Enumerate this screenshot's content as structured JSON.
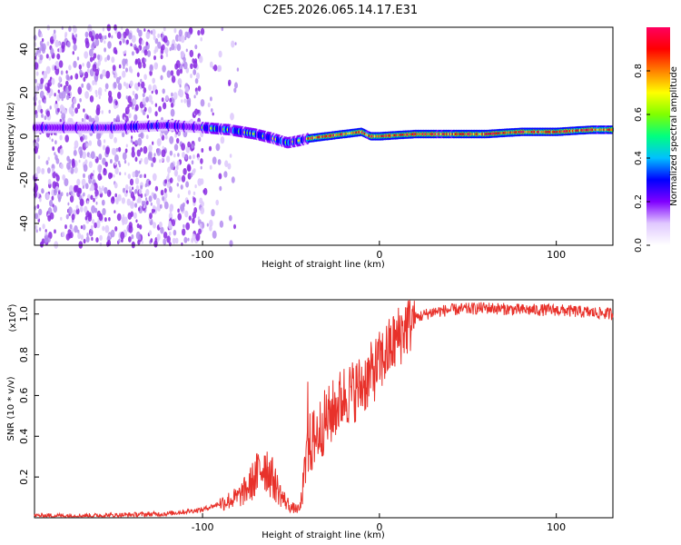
{
  "title": "C2E5.2026.065.14.17.E31",
  "chart_data": [
    {
      "type": "heatmap",
      "xlabel": "Height of straight line (km)",
      "ylabel": "Frequency (Hz)",
      "xlim": [
        -195,
        132
      ],
      "ylim": [
        -50,
        50
      ],
      "xticks": [
        -100,
        0,
        100
      ],
      "xtick_labels": [
        "-100",
        "0",
        "100"
      ],
      "yticks": [
        -40,
        -20,
        0,
        20,
        40
      ],
      "ytick_labels": [
        "-40",
        "-20",
        "0",
        "20",
        "40"
      ],
      "ridge": {
        "x": [
          -195,
          -150,
          -120,
          -100,
          -85,
          -70,
          -60,
          -52,
          -45,
          -40,
          -30,
          -20,
          -10,
          -5,
          0,
          20,
          40,
          60,
          80,
          100,
          120,
          132
        ],
        "y": [
          4,
          4,
          5,
          4,
          3,
          1,
          -1,
          -3,
          -2,
          -1,
          0,
          1,
          2,
          0,
          0,
          1,
          1,
          1,
          2,
          2,
          3,
          3
        ]
      },
      "noise_region_x": [
        -195,
        -100
      ],
      "colorbar": {
        "label": "Normalized spectral amplitude",
        "range": [
          0,
          1
        ],
        "ticks": [
          0.0,
          0.2,
          0.4,
          0.6,
          0.8
        ],
        "tick_labels": [
          "0.0",
          "0.2",
          "0.4",
          "0.6",
          "0.8"
        ],
        "colors": [
          "#ffffff",
          "#e0c8ff",
          "#8000ff",
          "#0000ff",
          "#00c0ff",
          "#00ff80",
          "#80ff00",
          "#ffff00",
          "#ff8000",
          "#ff0000",
          "#ff0060"
        ]
      }
    },
    {
      "type": "line",
      "xlabel": "Height of straight line (km)",
      "ylabel": "SNR (10 * v/v)",
      "y_multiplier": "(x10",
      "y_multiplier_exp": "4",
      "y_multiplier_close": ")",
      "xlim": [
        -195,
        132
      ],
      "ylim": [
        0,
        1.07
      ],
      "xticks": [
        -100,
        0,
        100
      ],
      "xtick_labels": [
        "-100",
        "0",
        "100"
      ],
      "yticks": [
        0.2,
        0.4,
        0.6,
        0.8,
        1.0
      ],
      "ytick_labels": [
        "0.2",
        "0.4",
        "0.6",
        "0.8",
        "1.0"
      ],
      "color": "#e8312a",
      "series": [
        {
          "name": "SNR",
          "x": [
            -195,
            -160,
            -120,
            -100,
            -90,
            -80,
            -75,
            -70,
            -65,
            -62,
            -58,
            -55,
            -50,
            -45,
            -42,
            -40,
            -36,
            -32,
            -28,
            -24,
            -20,
            -15,
            -10,
            -5,
            0,
            5,
            10,
            15,
            20,
            30,
            40,
            60,
            80,
            100,
            115,
            132
          ],
          "y": [
            0.01,
            0.01,
            0.02,
            0.04,
            0.07,
            0.1,
            0.14,
            0.2,
            0.27,
            0.22,
            0.15,
            0.1,
            0.05,
            0.04,
            0.22,
            0.35,
            0.4,
            0.46,
            0.5,
            0.55,
            0.6,
            0.62,
            0.65,
            0.7,
            0.76,
            0.82,
            0.88,
            0.94,
            0.98,
            1.01,
            1.02,
            1.03,
            1.02,
            1.02,
            1.01,
            1.0
          ]
        }
      ]
    }
  ]
}
